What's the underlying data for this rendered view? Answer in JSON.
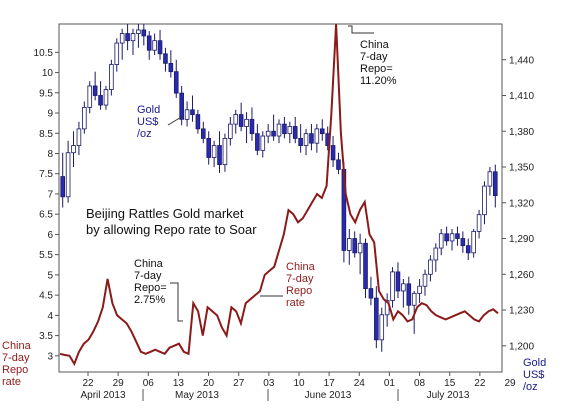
{
  "chart_data": {
    "type": "candlestick+line",
    "title_lines": [
      "Beijing Rattles Gold market",
      "by allowing Repo rate to Soar"
    ],
    "left_axis": {
      "label_lines": [
        "China",
        "7-day",
        "Repo",
        "rate"
      ],
      "ticks": [
        "3",
        "3.5",
        "4",
        "4.5",
        "5",
        "5.5",
        "6",
        "6.5",
        "7",
        "7.5",
        "8",
        "8.5",
        "9",
        "9.5",
        "10",
        "10.5"
      ],
      "range": [
        2.6,
        11.2
      ]
    },
    "right_axis": {
      "label_lines": [
        "Gold",
        "US$",
        "/oz"
      ],
      "ticks": [
        "1,200",
        "1,230",
        "1,260",
        "1,290",
        "1,320",
        "1,350",
        "1,380",
        "1,410",
        "1,440"
      ],
      "range": [
        1178,
        1470
      ]
    },
    "x_axis": {
      "day_ticks": [
        "22",
        "29",
        "06",
        "13",
        "20",
        "27",
        "03",
        "10",
        "17",
        "24",
        "01",
        "08",
        "15",
        "22",
        "29"
      ],
      "month_labels": [
        "April 2013",
        "May 2013",
        "June 2013",
        "July 2013"
      ]
    },
    "gold_candles": {
      "rising_color": "#ffffff",
      "falling_color": "#2a2ab0",
      "ohlc": [
        [
          1342,
          1362,
          1316,
          1325
        ],
        [
          1325,
          1372,
          1320,
          1362
        ],
        [
          1362,
          1380,
          1350,
          1368
        ],
        [
          1368,
          1388,
          1360,
          1382
        ],
        [
          1382,
          1405,
          1378,
          1400
        ],
        [
          1400,
          1422,
          1395,
          1418
        ],
        [
          1418,
          1430,
          1406,
          1410
        ],
        [
          1410,
          1422,
          1398,
          1402
        ],
        [
          1402,
          1418,
          1398,
          1415
        ],
        [
          1415,
          1440,
          1410,
          1436
        ],
        [
          1436,
          1458,
          1430,
          1454
        ],
        [
          1454,
          1466,
          1440,
          1462
        ],
        [
          1462,
          1470,
          1448,
          1456
        ],
        [
          1456,
          1466,
          1444,
          1462
        ],
        [
          1462,
          1470,
          1450,
          1465
        ],
        [
          1465,
          1470,
          1452,
          1460
        ],
        [
          1460,
          1464,
          1440,
          1448
        ],
        [
          1448,
          1462,
          1444,
          1456
        ],
        [
          1456,
          1465,
          1440,
          1445
        ],
        [
          1445,
          1450,
          1430,
          1437
        ],
        [
          1437,
          1448,
          1425,
          1430
        ],
        [
          1430,
          1440,
          1408,
          1412
        ],
        [
          1412,
          1418,
          1385,
          1390
        ],
        [
          1390,
          1405,
          1384,
          1398
        ],
        [
          1398,
          1410,
          1388,
          1394
        ],
        [
          1394,
          1398,
          1378,
          1382
        ],
        [
          1382,
          1388,
          1370,
          1374
        ],
        [
          1374,
          1380,
          1352,
          1358
        ],
        [
          1358,
          1372,
          1350,
          1368
        ],
        [
          1368,
          1380,
          1345,
          1352
        ],
        [
          1352,
          1378,
          1346,
          1374
        ],
        [
          1374,
          1392,
          1368,
          1386
        ],
        [
          1386,
          1398,
          1378,
          1394
        ],
        [
          1394,
          1404,
          1380,
          1384
        ],
        [
          1384,
          1396,
          1370,
          1390
        ],
        [
          1390,
          1400,
          1372,
          1378
        ],
        [
          1378,
          1386,
          1360,
          1364
        ],
        [
          1364,
          1380,
          1358,
          1376
        ],
        [
          1376,
          1386,
          1370,
          1380
        ],
        [
          1380,
          1394,
          1372,
          1376
        ],
        [
          1376,
          1390,
          1370,
          1386
        ],
        [
          1386,
          1392,
          1374,
          1378
        ],
        [
          1378,
          1388,
          1370,
          1384
        ],
        [
          1384,
          1392,
          1370,
          1374
        ],
        [
          1374,
          1386,
          1362,
          1368
        ],
        [
          1368,
          1382,
          1360,
          1378
        ],
        [
          1378,
          1386,
          1364,
          1370
        ],
        [
          1370,
          1386,
          1362,
          1382
        ],
        [
          1382,
          1390,
          1372,
          1378
        ],
        [
          1378,
          1384,
          1364,
          1368
        ],
        [
          1368,
          1376,
          1350,
          1356
        ],
        [
          1356,
          1362,
          1344,
          1348
        ],
        [
          1348,
          1354,
          1270,
          1280
        ],
        [
          1280,
          1298,
          1268,
          1290
        ],
        [
          1290,
          1296,
          1274,
          1278
        ],
        [
          1278,
          1294,
          1260,
          1286
        ],
        [
          1286,
          1290,
          1240,
          1248
        ],
        [
          1248,
          1258,
          1234,
          1240
        ],
        [
          1240,
          1250,
          1198,
          1205
        ],
        [
          1205,
          1232,
          1195,
          1226
        ],
        [
          1226,
          1244,
          1216,
          1238
        ],
        [
          1238,
          1266,
          1232,
          1262
        ],
        [
          1262,
          1270,
          1240,
          1246
        ],
        [
          1246,
          1256,
          1232,
          1252
        ],
        [
          1252,
          1258,
          1226,
          1234
        ],
        [
          1234,
          1246,
          1210,
          1244
        ],
        [
          1244,
          1256,
          1236,
          1250
        ],
        [
          1250,
          1264,
          1242,
          1260
        ],
        [
          1260,
          1276,
          1254,
          1272
        ],
        [
          1272,
          1286,
          1262,
          1282
        ],
        [
          1282,
          1298,
          1276,
          1294
        ],
        [
          1294,
          1300,
          1284,
          1288
        ],
        [
          1288,
          1298,
          1280,
          1294
        ],
        [
          1294,
          1300,
          1284,
          1290
        ],
        [
          1290,
          1296,
          1278,
          1284
        ],
        [
          1284,
          1290,
          1272,
          1278
        ],
        [
          1278,
          1298,
          1274,
          1296
        ],
        [
          1296,
          1314,
          1290,
          1310
        ],
        [
          1310,
          1338,
          1302,
          1334
        ],
        [
          1334,
          1350,
          1326,
          1346
        ],
        [
          1346,
          1352,
          1316,
          1326
        ]
      ]
    },
    "repo_line": {
      "color": "#8b1a1a",
      "values": [
        3.05,
        3.02,
        3.0,
        2.8,
        3.1,
        3.3,
        3.4,
        3.6,
        3.85,
        4.2,
        4.9,
        4.3,
        4.0,
        3.9,
        3.8,
        3.6,
        3.35,
        3.1,
        3.05,
        3.1,
        3.15,
        3.1,
        3.05,
        3.2,
        3.25,
        3.3,
        3.1,
        3.05,
        4.3,
        4.1,
        3.5,
        4.2,
        4.1,
        4.0,
        3.7,
        3.5,
        4.2,
        4.1,
        3.8,
        4.3,
        4.4,
        4.5,
        4.6,
        5.0,
        5.1,
        5.2,
        5.6,
        6.0,
        6.6,
        6.5,
        6.3,
        6.4,
        6.6,
        6.8,
        7.0,
        6.9,
        7.2,
        9.0,
        11.2,
        8.5,
        7.0,
        6.5,
        6.3,
        6.6,
        6.8,
        6.0,
        5.8,
        4.6,
        4.4,
        4.3,
        3.9,
        4.1,
        4.0,
        3.85,
        3.9,
        4.2,
        4.3,
        4.25,
        4.1,
        4.0,
        3.95,
        3.9,
        3.95,
        4.0,
        4.05,
        4.1,
        4.0,
        3.9,
        3.85,
        4.0,
        4.1,
        4.15,
        4.05
      ]
    },
    "annotations": {
      "gold": [
        "Gold",
        "US$",
        "/oz"
      ],
      "repo_low": [
        "China",
        "7-day",
        "Repo=",
        "2.75%"
      ],
      "repo_rate": [
        "China",
        "7-day",
        "Repo",
        "rate"
      ],
      "repo_peak": [
        "China",
        "7-day",
        "Repo=",
        "11.20%"
      ]
    },
    "grid": false
  }
}
